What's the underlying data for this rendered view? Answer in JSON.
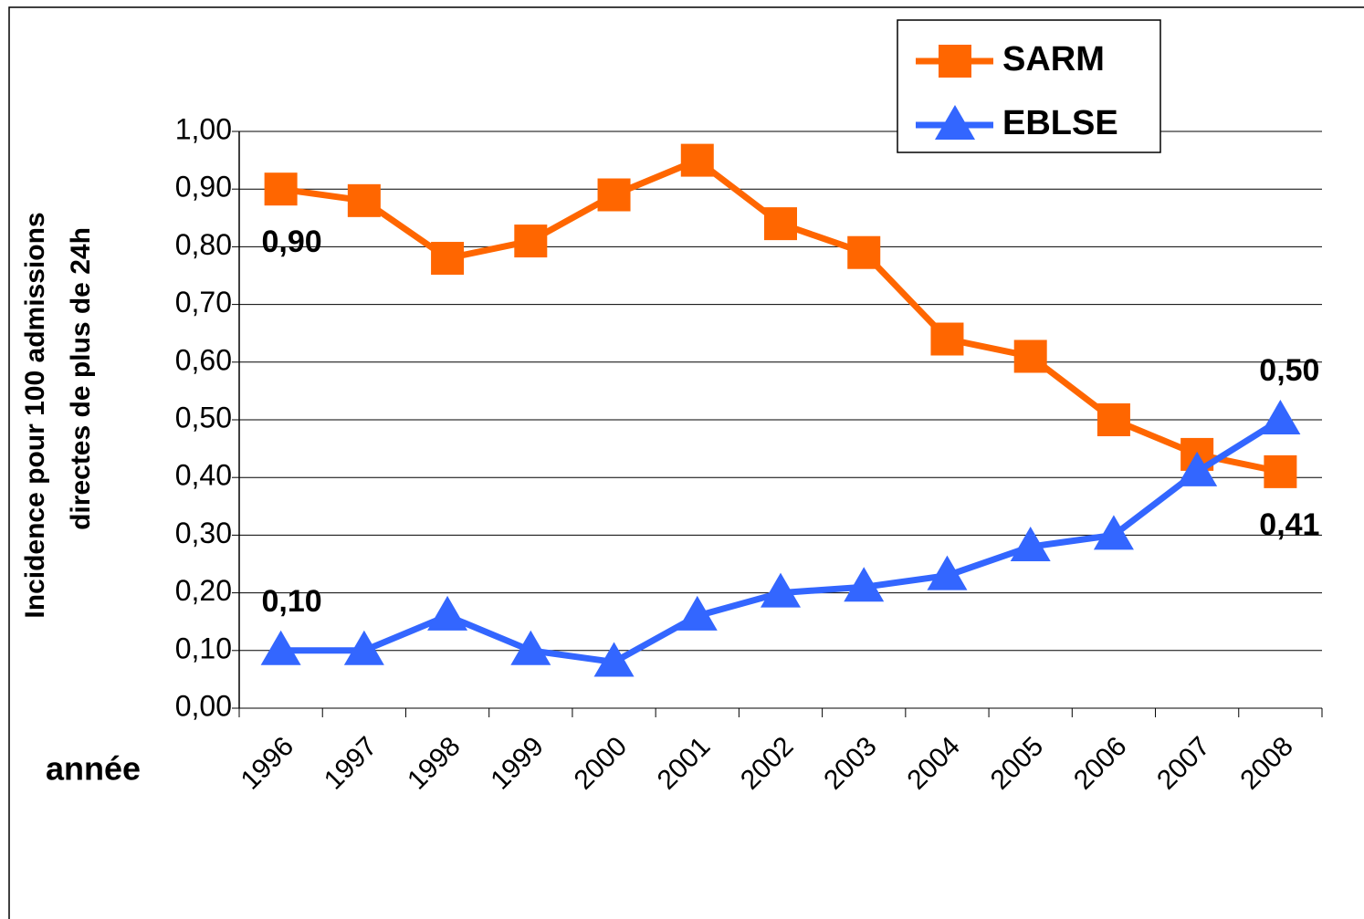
{
  "chart_data": {
    "type": "line",
    "ylabel": [
      "Incidence pour 100 admissions",
      "directes de plus de 24h"
    ],
    "xlabel": "année",
    "categories": [
      "1996",
      "1997",
      "1998",
      "1999",
      "2000",
      "2001",
      "2002",
      "2003",
      "2004",
      "2005",
      "2006",
      "2007",
      "2008"
    ],
    "series": [
      {
        "name": "SARM",
        "color": "#ff6600",
        "marker": "square",
        "values": [
          0.9,
          0.88,
          0.78,
          0.81,
          0.89,
          0.95,
          0.84,
          0.79,
          0.64,
          0.61,
          0.5,
          0.44,
          0.41
        ],
        "value_labels": [
          "0,90",
          null,
          null,
          null,
          null,
          null,
          null,
          null,
          null,
          null,
          null,
          null,
          "0,41"
        ]
      },
      {
        "name": "EBLSE",
        "color": "#3366ff",
        "marker": "triangle",
        "values": [
          0.1,
          0.1,
          0.16,
          0.1,
          0.08,
          0.16,
          0.2,
          0.21,
          0.23,
          0.28,
          0.3,
          0.41,
          0.5
        ],
        "value_labels": [
          "0,10",
          null,
          null,
          null,
          null,
          null,
          null,
          null,
          null,
          null,
          null,
          null,
          "0,50"
        ]
      }
    ],
    "ylim": [
      0,
      1
    ],
    "yticks": [
      {
        "value": 0,
        "label": "0,00"
      },
      {
        "value": 0.1,
        "label": "0,10"
      },
      {
        "value": 0.2,
        "label": "0,20"
      },
      {
        "value": 0.3,
        "label": "0,30"
      },
      {
        "value": 0.4,
        "label": "0,40"
      },
      {
        "value": 0.5,
        "label": "0,50"
      },
      {
        "value": 0.6,
        "label": "0,60"
      },
      {
        "value": 0.7,
        "label": "0,70"
      },
      {
        "value": 0.8,
        "label": "0,80"
      },
      {
        "value": 0.9,
        "label": "0,90"
      },
      {
        "value": 1,
        "label": "1,00"
      }
    ],
    "grid": true,
    "legend": "top-right"
  }
}
